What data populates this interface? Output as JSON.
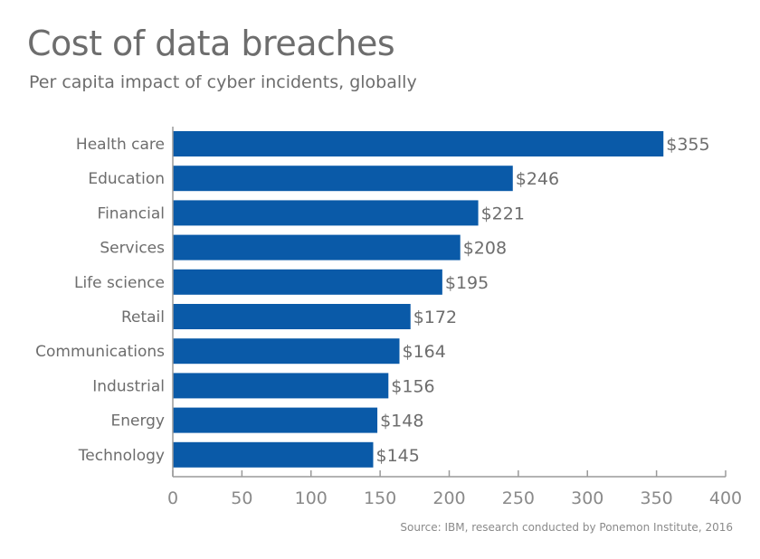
{
  "colors": {
    "bar": "#0a5aa8",
    "axis": "#9a9a9a",
    "text": "#6d6d6d"
  },
  "chart_data": {
    "type": "bar",
    "orientation": "horizontal",
    "title": "Cost of data breaches",
    "subtitle": "Per capita impact of cyber incidents, globally",
    "source": "Source: IBM, research conducted by Ponemon Institute, 2016",
    "xlabel": "",
    "ylabel": "",
    "xlim": [
      0,
      400
    ],
    "x_ticks": [
      "0",
      "50",
      "100",
      "150",
      "200",
      "250",
      "300",
      "350",
      "400"
    ],
    "grid": false,
    "categories": [
      "Health care",
      "Education",
      "Financial",
      "Services",
      "Life science",
      "Retail",
      "Communications",
      "Industrial",
      "Energy",
      "Technology"
    ],
    "values": [
      355,
      246,
      221,
      208,
      195,
      172,
      164,
      156,
      148,
      145
    ],
    "value_labels": [
      "$355",
      "$246",
      "$221",
      "$208",
      "$195",
      "$172",
      "$164",
      "$156",
      "$148",
      "$145"
    ]
  }
}
